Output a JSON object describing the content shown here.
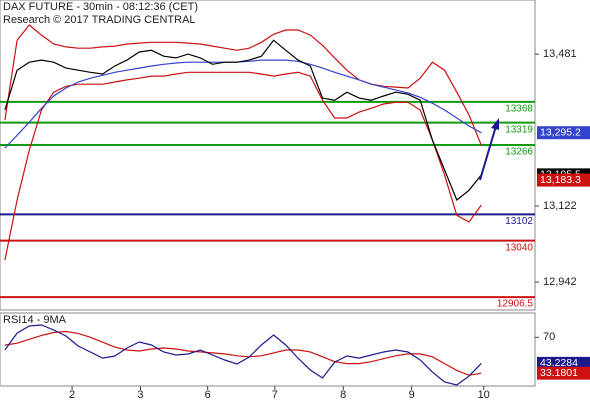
{
  "chart_data": [
    {
      "type": "line",
      "title": "DAX FUTURE - 30min - 08:12:36 (CET)",
      "subtitle": "Research © 2017 TRADING CENTRAL",
      "x": [
        0,
        1,
        2,
        3,
        4,
        5,
        6,
        7,
        8,
        9,
        10,
        11,
        12,
        13,
        14,
        15,
        16,
        17,
        18,
        19,
        20,
        21,
        22,
        23,
        24,
        25,
        26,
        27,
        28,
        29,
        30,
        31,
        32,
        33,
        34,
        35,
        36,
        37,
        38,
        39
      ],
      "xlim": [
        -0.4,
        43.4
      ],
      "ylim": [
        12876,
        13609
      ],
      "yticks": [
        {
          "value": 13481,
          "label": "13,481"
        },
        {
          "value": 13122,
          "label": "13,122"
        },
        {
          "value": 12942,
          "label": "12,942"
        }
      ],
      "series": [
        {
          "color": "#cc1111",
          "values": [
            13325,
            13514,
            13550,
            13526,
            13505,
            13498,
            13495,
            13495,
            13498,
            13500,
            13505,
            13507,
            13509,
            13509,
            13509,
            13507,
            13505,
            13500,
            13495,
            13490,
            13495,
            13509,
            13528,
            13538,
            13538,
            13526,
            13502,
            13472,
            13443,
            13420,
            13410,
            13405,
            13403,
            13401,
            13424,
            13462,
            13443,
            13391,
            13337,
            13266
          ]
        },
        {
          "color": "#cc1111",
          "values": [
            12994,
            13136,
            13254,
            13349,
            13391,
            13405,
            13410,
            13410,
            13410,
            13415,
            13420,
            13424,
            13429,
            13429,
            13434,
            13438,
            13438,
            13438,
            13438,
            13438,
            13438,
            13434,
            13429,
            13434,
            13438,
            13429,
            13372,
            13330,
            13330,
            13344,
            13353,
            13363,
            13367,
            13367,
            13349,
            13278,
            13195,
            13100,
            13084,
            13124
          ]
        },
        {
          "color": "#3344cc",
          "values": [
            13259,
            13289,
            13320,
            13353,
            13382,
            13401,
            13415,
            13424,
            13431,
            13438,
            13443,
            13448,
            13453,
            13457,
            13460,
            13462,
            13462,
            13462,
            13462,
            13462,
            13464,
            13467,
            13467,
            13467,
            13464,
            13457,
            13448,
            13438,
            13429,
            13420,
            13410,
            13403,
            13396,
            13389,
            13379,
            13365,
            13349,
            13330,
            13311,
            13295.2
          ]
        },
        {
          "color": "#000000",
          "values": [
            13349,
            13443,
            13462,
            13467,
            13462,
            13448,
            13443,
            13438,
            13434,
            13453,
            13467,
            13486,
            13490,
            13476,
            13472,
            13481,
            13472,
            13457,
            13462,
            13462,
            13467,
            13476,
            13514,
            13490,
            13467,
            13453,
            13377,
            13372,
            13391,
            13377,
            13372,
            13382,
            13391,
            13386,
            13372,
            13278,
            13207,
            13136,
            13159,
            13195.5
          ]
        }
      ],
      "levels": [
        {
          "value": 13368,
          "color": "#119911"
        },
        {
          "value": 13319,
          "color": "#119911"
        },
        {
          "value": 13266,
          "color": "#119911"
        },
        {
          "value": 13102,
          "color": "#1a1a8c"
        },
        {
          "value": 13040,
          "color": "#cc1111"
        },
        {
          "value": 12906.5,
          "color": "#cc1111"
        }
      ],
      "markers": [
        {
          "value": 13295.2,
          "label": "13,295.2",
          "color": "#3344cc"
        },
        {
          "value": 13195.5,
          "label": "13,195.5",
          "color": "#000000"
        },
        {
          "value": 13183.3,
          "label": "13,183.3",
          "color": "#cc1111"
        }
      ]
    },
    {
      "type": "line",
      "title": "RSI14 - 9MA",
      "x": [
        0,
        1,
        2,
        3,
        4,
        5,
        6,
        7,
        8,
        9,
        10,
        11,
        12,
        13,
        14,
        15,
        16,
        17,
        18,
        19,
        20,
        21,
        22,
        23,
        24,
        25,
        26,
        27,
        28,
        29,
        30,
        31,
        32,
        33,
        34,
        35,
        36,
        37,
        38,
        39
      ],
      "xlim": [
        -0.4,
        43.4
      ],
      "xticks": [
        {
          "value": 5.5,
          "label": "2"
        },
        {
          "value": 11.1,
          "label": "3"
        },
        {
          "value": 16.6,
          "label": "6"
        },
        {
          "value": 22.1,
          "label": "7"
        },
        {
          "value": 27.7,
          "label": "8"
        },
        {
          "value": 33.3,
          "label": "9"
        },
        {
          "value": 39.2,
          "label": "10"
        }
      ],
      "ylim": [
        20,
        95
      ],
      "yticks": [
        70
      ],
      "series": [
        {
          "color": "#cc1111",
          "values": [
            62,
            64,
            68,
            72,
            75,
            76,
            74,
            70,
            65,
            60,
            57,
            56,
            58,
            59,
            58,
            56,
            55,
            54,
            53,
            51,
            50,
            51,
            54,
            57,
            57,
            55,
            50,
            45,
            43,
            43,
            45,
            48,
            51,
            53,
            53,
            50,
            43,
            36,
            31,
            33.1801
          ]
        },
        {
          "color": "#1a1a8c",
          "values": [
            57.0,
            74.4,
            81.6,
            82.7,
            77.5,
            71.4,
            61.1,
            54.9,
            48.7,
            50.8,
            59.0,
            65.2,
            62.1,
            54.9,
            51.8,
            52.9,
            57.0,
            51.8,
            46.7,
            42.6,
            49.8,
            62.1,
            72.4,
            62.1,
            48.7,
            36.4,
            28.2,
            44.6,
            50.8,
            48.7,
            51.8,
            54.9,
            57.0,
            54.9,
            46.7,
            34.3,
            24.1,
            21.0,
            30.2,
            43.2284
          ]
        }
      ],
      "markers": [
        {
          "value": 43.2284,
          "color": "#1a1a8c"
        },
        {
          "value": 33.1801,
          "color": "#cc1111"
        }
      ]
    }
  ]
}
